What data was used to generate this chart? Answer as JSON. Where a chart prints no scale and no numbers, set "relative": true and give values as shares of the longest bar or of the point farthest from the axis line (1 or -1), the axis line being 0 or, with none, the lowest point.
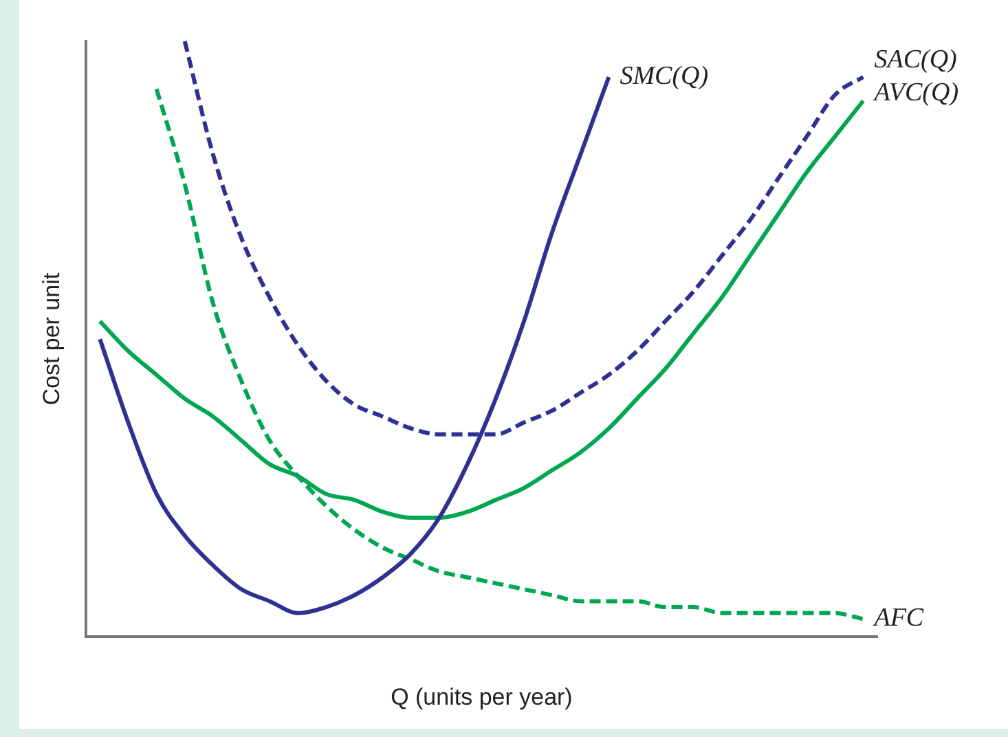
{
  "chart_data": {
    "type": "line",
    "relative": true,
    "xlabel": "Q (units per year)",
    "ylabel": "Cost per unit",
    "legend": false,
    "grid": false,
    "marker": "none",
    "categories": [
      null,
      null,
      null,
      null,
      null,
      null,
      null,
      null,
      null,
      null,
      null,
      null,
      null,
      null,
      null,
      null,
      null,
      null,
      null,
      null,
      null,
      null,
      null,
      null,
      null,
      null,
      null,
      null
    ],
    "series": [
      {
        "name": "SMC(Q)",
        "color": "#2e3192",
        "line_style": "solid",
        "values": [
          0.5,
          0.36,
          0.24,
          0.17,
          0.12,
          0.08,
          0.06,
          0.04,
          0.05,
          0.07,
          0.1,
          0.14,
          0.2,
          0.29,
          0.4,
          0.53,
          0.68,
          0.81,
          0.94,
          null,
          null,
          null,
          null,
          null,
          null,
          null,
          null,
          null
        ]
      },
      {
        "name": "SAC(Q)",
        "color": "#2e3192",
        "line_style": "dashed",
        "values": [
          null,
          null,
          null,
          1,
          0.81,
          0.67,
          0.57,
          0.49,
          0.43,
          0.39,
          0.37,
          0.35,
          0.34,
          0.34,
          0.34,
          0.36,
          0.38,
          0.41,
          0.44,
          0.48,
          0.53,
          0.58,
          0.64,
          0.7,
          0.77,
          0.84,
          0.91,
          0.94
        ]
      },
      {
        "name": "AVC(Q)",
        "color": "#00a651",
        "line_style": "solid",
        "values": [
          0.53,
          0.48,
          0.44,
          0.4,
          0.37,
          0.33,
          0.29,
          0.27,
          0.24,
          0.23,
          0.21,
          0.2,
          0.2,
          0.21,
          0.23,
          0.25,
          0.28,
          0.31,
          0.35,
          0.4,
          0.45,
          0.51,
          0.57,
          0.64,
          0.71,
          0.78,
          0.84,
          0.9
        ]
      },
      {
        "name": "AFC",
        "color": "#00a651",
        "line_style": "dashed",
        "values": [
          null,
          null,
          0.92,
          0.76,
          0.56,
          0.43,
          0.33,
          0.27,
          0.22,
          0.18,
          0.15,
          0.13,
          0.11,
          0.1,
          0.09,
          0.08,
          0.07,
          0.06,
          0.06,
          0.06,
          0.05,
          0.05,
          0.04,
          0.04,
          0.04,
          0.04,
          0.04,
          0.03
        ]
      }
    ]
  }
}
